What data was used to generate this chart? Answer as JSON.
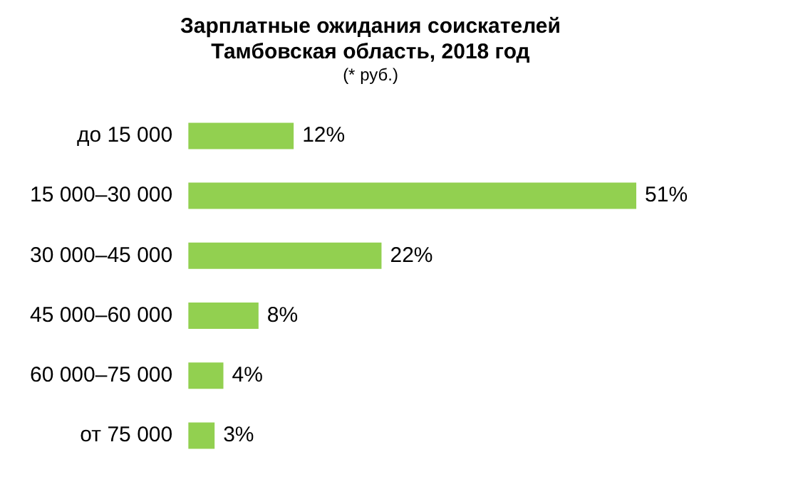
{
  "chart_data": {
    "type": "bar",
    "orientation": "horizontal",
    "title": "Зарплатные ожидания соискателей\nТамбовская область, 2018 год",
    "subtitle": "(* руб.)",
    "categories": [
      "до 15 000",
      "15 000–30 000",
      "30 000–45 000",
      "45 000–60 000",
      "60 000–75 000",
      "от 75 000"
    ],
    "values": [
      12,
      51,
      22,
      8,
      4,
      3
    ],
    "value_labels": [
      "12%",
      "51%",
      "22%",
      "8%",
      "4%",
      "3%"
    ],
    "color": "#92d050"
  }
}
